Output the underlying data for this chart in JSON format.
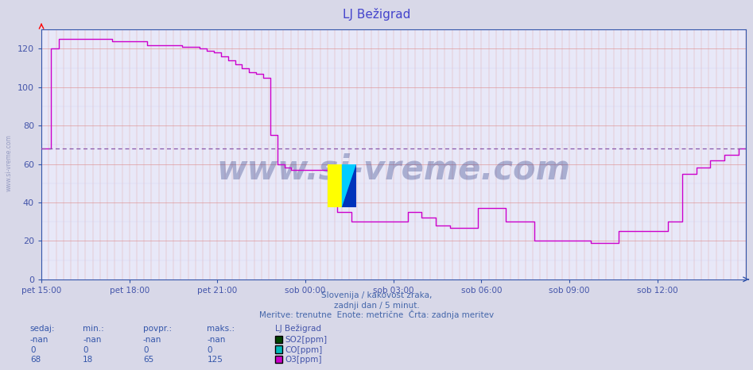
{
  "title": "LJ Bežigrad",
  "title_color": "#4444cc",
  "bg_color": "#d8d8e8",
  "plot_bg_color": "#e8e8f8",
  "grid_color_pink": "#dd8888",
  "grid_color_light": "#ccccee",
  "watermark": "www.si-vreme.com",
  "watermark_color": "#1a2a7a",
  "watermark_alpha": 0.3,
  "side_watermark": "www.si-vreme.com",
  "tick_color": "#4455aa",
  "axis_color": "#3355aa",
  "ylim": [
    0,
    130
  ],
  "yticks": [
    0,
    20,
    40,
    60,
    80,
    100,
    120
  ],
  "x_labels": [
    "pet 15:00",
    "pet 18:00",
    "pet 21:00",
    "sob 00:00",
    "sob 03:00",
    "sob 06:00",
    "sob 09:00",
    "sob 12:00"
  ],
  "x_tick_positions": [
    0.0,
    0.125,
    0.25,
    0.375,
    0.5,
    0.625,
    0.75,
    0.875
  ],
  "dashed_line_y": 68,
  "dashed_line_color": "#8855aa",
  "subtitle1": "Slovenija / kakovost zraka,",
  "subtitle2": "zadnji dan / 5 minut.",
  "subtitle3": "Meritve: trenutne  Enote: metrične  Črta: zadnja meritev",
  "subtitle_color": "#4466aa",
  "legend_title": "LJ Bežigrad",
  "legend_color": "#4455aa",
  "so2_color": "#004400",
  "co_color": "#00bbbb",
  "o3_color": "#cc00cc",
  "o3_color_line": "#cc00cc",
  "table_header_color": "#3355aa",
  "table_data_color": "#3355aa",
  "o3_data_x": [
    0.0,
    0.013,
    0.025,
    0.05,
    0.075,
    0.1,
    0.125,
    0.15,
    0.175,
    0.2,
    0.225,
    0.235,
    0.245,
    0.255,
    0.265,
    0.275,
    0.285,
    0.295,
    0.305,
    0.315,
    0.325,
    0.335,
    0.345,
    0.355,
    0.365,
    0.375,
    0.385,
    0.395,
    0.42,
    0.44,
    0.46,
    0.48,
    0.5,
    0.52,
    0.54,
    0.56,
    0.58,
    0.6,
    0.62,
    0.64,
    0.66,
    0.68,
    0.7,
    0.72,
    0.74,
    0.76,
    0.78,
    0.8,
    0.82,
    0.84,
    0.86,
    0.875,
    0.89,
    0.91,
    0.93,
    0.95,
    0.97,
    0.99,
    1.0
  ],
  "o3_data_y": [
    68,
    120,
    125,
    125,
    125,
    124,
    124,
    122,
    122,
    121,
    120,
    119,
    118,
    116,
    114,
    112,
    110,
    108,
    107,
    105,
    75,
    60,
    58,
    57,
    57,
    57,
    57,
    57,
    35,
    30,
    30,
    30,
    30,
    35,
    32,
    28,
    27,
    27,
    37,
    37,
    30,
    30,
    20,
    20,
    20,
    20,
    19,
    19,
    25,
    25,
    25,
    25,
    30,
    55,
    58,
    62,
    65,
    68,
    68
  ],
  "sedaj_label": "sedaj:",
  "min_label": "min.:",
  "povpr_label": "povpr.:",
  "maks_label": "maks.:",
  "so2_sedaj": "-nan",
  "so2_min": "-nan",
  "so2_povpr": "-nan",
  "so2_maks": "-nan",
  "co_sedaj": "0",
  "co_min": "0",
  "co_povpr": "0",
  "co_maks": "0",
  "o3_sedaj": "68",
  "o3_min": "18",
  "o3_povpr": "65",
  "o3_maks": "125",
  "logo_yellow": "#ffff00",
  "logo_cyan": "#00ccff",
  "logo_blue": "#0033bb"
}
